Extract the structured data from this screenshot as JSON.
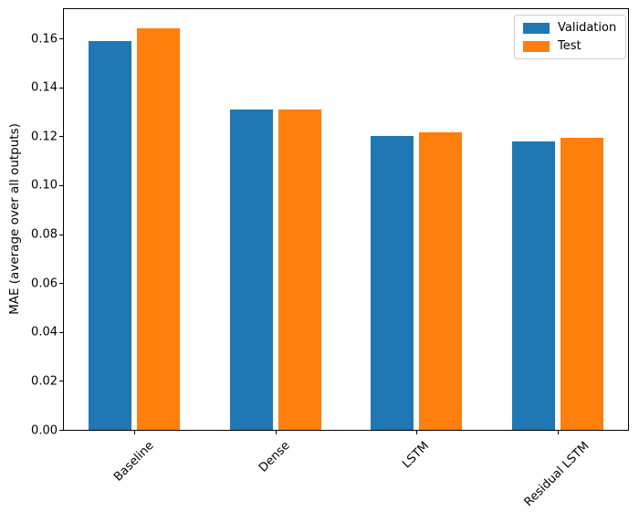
{
  "chart_data": {
    "type": "bar",
    "title": "",
    "xlabel": "",
    "ylabel": "MAE (average over all outputs)",
    "categories": [
      "Baseline",
      "Dense",
      "LSTM",
      "Residual LSTM"
    ],
    "series": [
      {
        "name": "Validation",
        "color": "#1f77b4",
        "values": [
          0.159,
          0.131,
          0.12,
          0.118
        ]
      },
      {
        "name": "Test",
        "color": "#ff7f0e",
        "values": [
          0.164,
          0.131,
          0.1215,
          0.1195
        ]
      }
    ],
    "ylim": [
      0,
      0.172
    ],
    "yticks": [
      {
        "value": 0.0,
        "label": "0.00"
      },
      {
        "value": 0.02,
        "label": "0.02"
      },
      {
        "value": 0.04,
        "label": "0.04"
      },
      {
        "value": 0.06,
        "label": "0.06"
      },
      {
        "value": 0.08,
        "label": "0.08"
      },
      {
        "value": 0.1,
        "label": "0.10"
      },
      {
        "value": 0.12,
        "label": "0.12"
      },
      {
        "value": 0.14,
        "label": "0.14"
      },
      {
        "value": 0.16,
        "label": "0.16"
      }
    ],
    "xtick_rotation": 45,
    "grid": false,
    "legend": {
      "position": "upper right"
    },
    "colors": {
      "spine": "#000000",
      "text": "#000000",
      "legend_border": "#cccccc",
      "background": "#ffffff"
    }
  }
}
